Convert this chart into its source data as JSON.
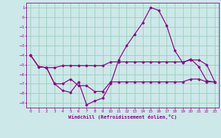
{
  "xlabel": "Windchill (Refroidissement éolien,°C)",
  "background_color": "#cce8e8",
  "plot_bg_color": "#cce8e8",
  "grid_color": "#99ccbb",
  "line_color": "#880088",
  "xlim": [
    -0.5,
    23.5
  ],
  "ylim": [
    -9.5,
    1.5
  ],
  "yticks": [
    1,
    0,
    -1,
    -2,
    -3,
    -4,
    -5,
    -6,
    -7,
    -8,
    -9
  ],
  "xticks": [
    0,
    1,
    2,
    3,
    4,
    5,
    6,
    7,
    8,
    9,
    10,
    11,
    12,
    13,
    14,
    15,
    16,
    17,
    18,
    19,
    20,
    21,
    22,
    23
  ],
  "line1_x": [
    0,
    1,
    2,
    3,
    4,
    5,
    6,
    7,
    8,
    9,
    10,
    11,
    12,
    13,
    14,
    15,
    16,
    17,
    18,
    19,
    20,
    21,
    22,
    23
  ],
  "line1_y": [
    -4.0,
    -5.2,
    -5.3,
    -5.3,
    -5.1,
    -5.1,
    -5.1,
    -5.1,
    -5.1,
    -5.1,
    -4.7,
    -4.7,
    -4.7,
    -4.7,
    -4.7,
    -4.7,
    -4.7,
    -4.7,
    -4.7,
    -4.7,
    -4.5,
    -4.5,
    -5.0,
    -6.8
  ],
  "line2_x": [
    0,
    1,
    2,
    3,
    4,
    5,
    6,
    7,
    8,
    9,
    10,
    11,
    12,
    13,
    14,
    15,
    16,
    17,
    18,
    19,
    20,
    21,
    22,
    23
  ],
  "line2_y": [
    -4.0,
    -5.2,
    -5.3,
    -7.0,
    -7.0,
    -6.5,
    -7.2,
    -7.2,
    -7.8,
    -7.8,
    -6.8,
    -6.8,
    -6.8,
    -6.8,
    -6.8,
    -6.8,
    -6.8,
    -6.8,
    -6.8,
    -6.8,
    -6.5,
    -6.5,
    -6.8,
    -6.8
  ],
  "line3_x": [
    0,
    1,
    2,
    3,
    4,
    5,
    6,
    7,
    8,
    9,
    10,
    11,
    12,
    13,
    14,
    15,
    16,
    17,
    18,
    19,
    20,
    21,
    22,
    23
  ],
  "line3_y": [
    -4.0,
    -5.2,
    -5.3,
    -7.0,
    -7.7,
    -7.9,
    -6.8,
    -9.2,
    -8.8,
    -8.5,
    -7.0,
    -4.5,
    -3.0,
    -1.8,
    -0.6,
    1.0,
    0.7,
    -0.9,
    -3.5,
    -4.8,
    -4.4,
    -5.2,
    -6.7,
    -6.8
  ]
}
